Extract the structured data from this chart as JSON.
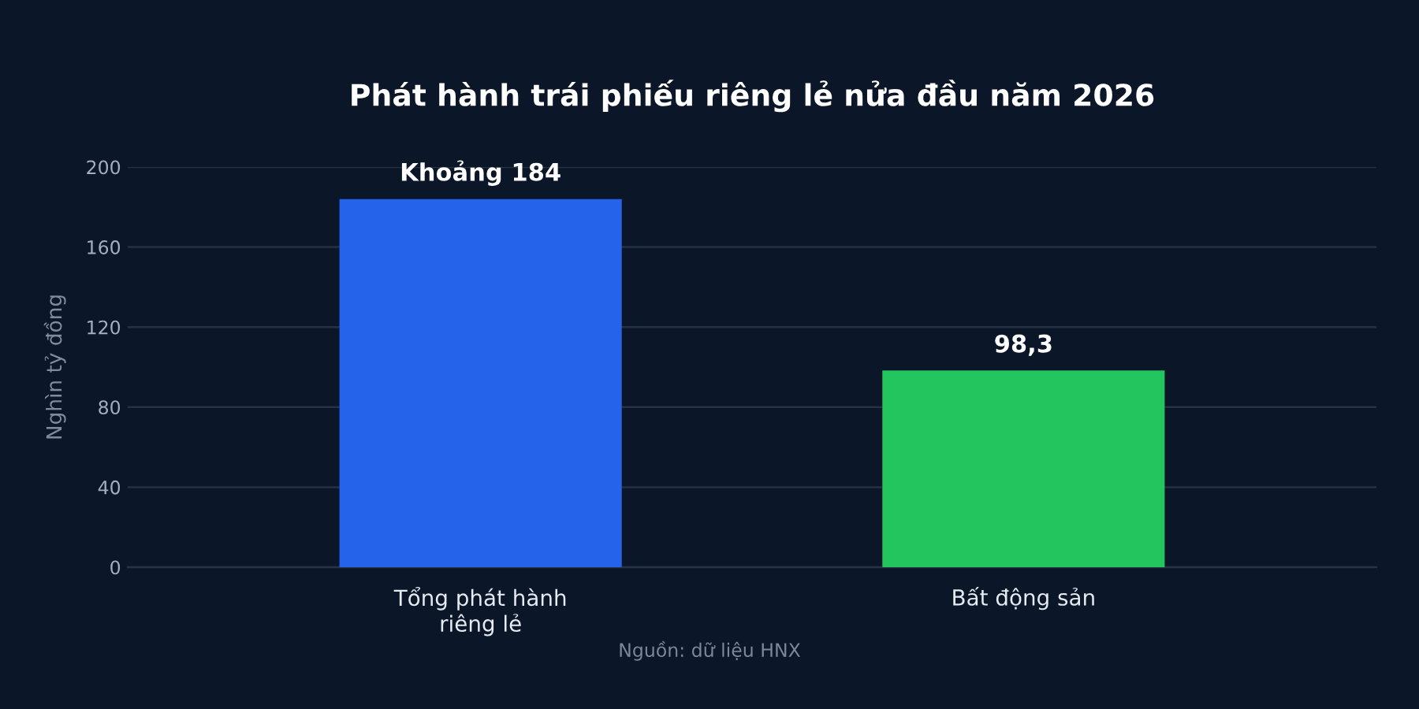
{
  "chart_data": {
    "type": "bar",
    "title": "Phát hành trái phiếu riêng lẻ nửa đầu năm 2026",
    "ylabel": "Nghìn tỷ đồng",
    "categories": [
      "Tổng phát hành\nriêng lẻ",
      "Bất động sản"
    ],
    "values": [
      184,
      98.3
    ],
    "colors": [
      "#2563eb",
      "#22c55e"
    ],
    "value_labels": [
      "Khoảng 184",
      "98,3"
    ],
    "ylim": [
      0,
      200
    ],
    "yticks": [
      0,
      40,
      80,
      120,
      160,
      200
    ],
    "grid": "y",
    "annotations": [
      "Nguồn: dữ liệu HNX"
    ]
  }
}
